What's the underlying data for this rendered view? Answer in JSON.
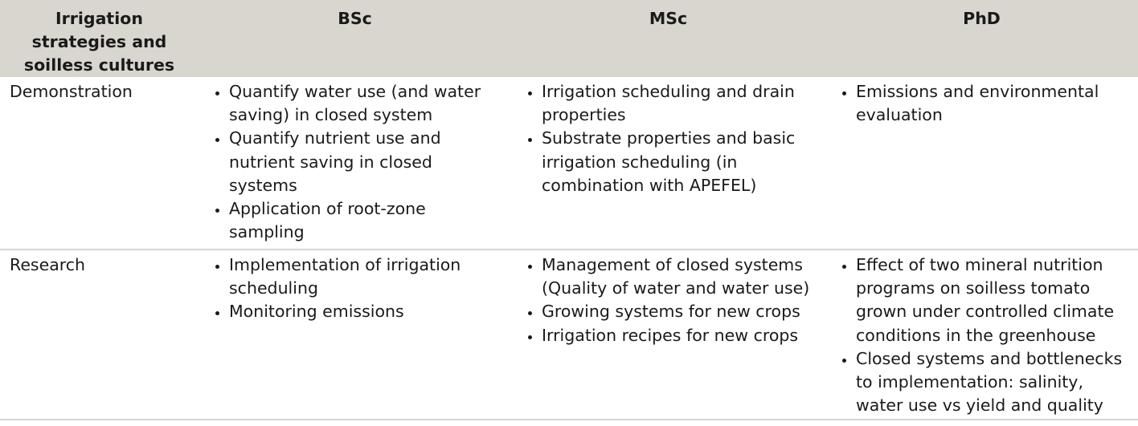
{
  "table": {
    "headers": [
      "Irrigation strategies and soilless cultures",
      "BSc",
      "MSc",
      "PhD"
    ],
    "rows": [
      {
        "label": "Demonstration",
        "bsc": [
          "Quantify water use (and water saving) in closed system",
          "Quantify nutrient use and nutrient saving in closed systems",
          "Application of root-zone sampling"
        ],
        "msc": [
          "Irrigation scheduling and drain properties",
          "Substrate properties and basic irrigation scheduling (in combination with APEFEL)"
        ],
        "phd": [
          "Emissions and environmental evaluation"
        ]
      },
      {
        "label": "Research",
        "bsc": [
          "Implementation of irrigation scheduling",
          "Monitoring emissions"
        ],
        "msc": [
          "Management of closed systems (Quality of water and water use)",
          "Growing systems for new crops",
          "Irrigation recipes for new crops"
        ],
        "phd": [
          "Effect of two mineral nutrition programs on soilless tomato grown under controlled climate conditions in the greenhouse",
          "Closed systems and bottlenecks to implementation: salinity, water use vs yield and quality"
        ]
      }
    ]
  }
}
